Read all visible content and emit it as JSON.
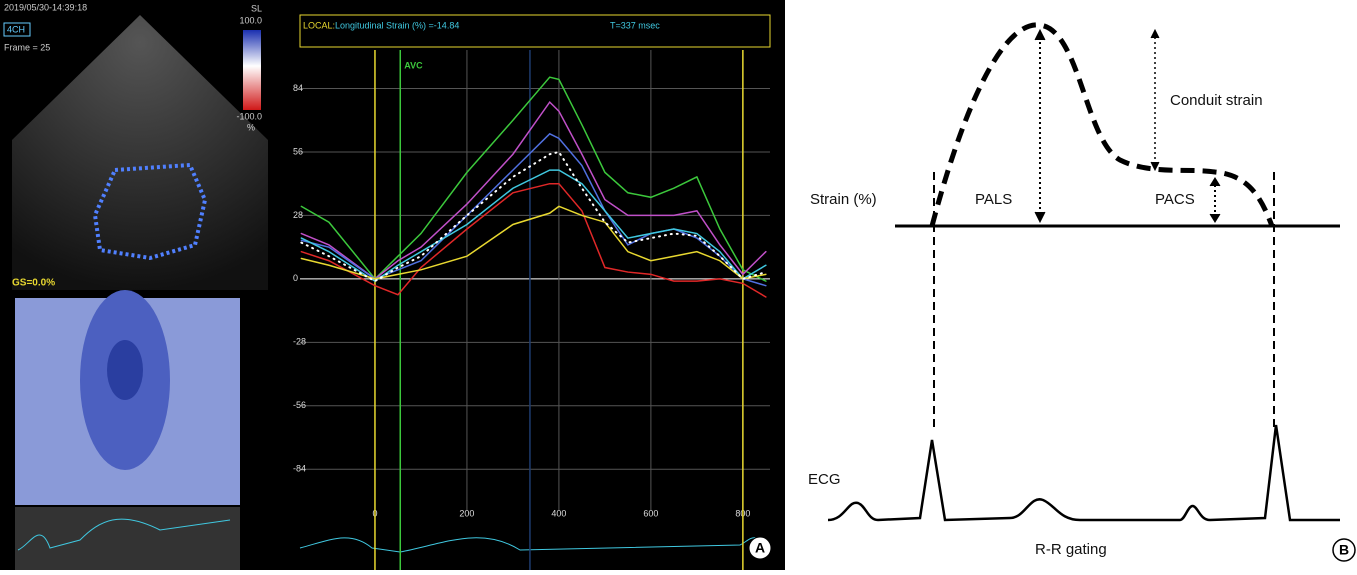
{
  "chart_data": {
    "type": "line",
    "xlim": [
      -163,
      859
    ],
    "ylim": [
      -102,
      101
    ],
    "xticks": [
      0,
      200,
      400,
      600,
      800
    ],
    "yticks": [
      84,
      56,
      28,
      0,
      -28,
      -56,
      -84
    ],
    "grid": true,
    "x": [
      -160,
      -100,
      0,
      50,
      100,
      200,
      300,
      380,
      400,
      450,
      500,
      550,
      600,
      650,
      700,
      750,
      800,
      850
    ],
    "series": [
      {
        "color": "#3cc83c",
        "values": [
          32,
          25,
          0,
          10,
          20,
          47,
          70,
          89,
          88,
          68,
          47,
          38,
          36,
          40,
          45,
          22,
          4,
          -1
        ]
      },
      {
        "color": "#c050c8",
        "values": [
          20,
          15,
          0,
          8,
          14,
          33,
          55,
          78,
          74,
          55,
          35,
          28,
          28,
          28,
          30,
          15,
          2,
          12
        ]
      },
      {
        "color": "#5070e0",
        "values": [
          17,
          14,
          0,
          4,
          8,
          28,
          48,
          64,
          62,
          50,
          30,
          15,
          20,
          22,
          18,
          10,
          0,
          -3
        ]
      },
      {
        "color": "#40c8e0",
        "values": [
          18,
          12,
          -1,
          6,
          12,
          24,
          40,
          48,
          48,
          42,
          30,
          18,
          20,
          22,
          20,
          12,
          0,
          6
        ]
      },
      {
        "color": "#e02828",
        "values": [
          12,
          8,
          -3,
          -7,
          5,
          22,
          38,
          42,
          42,
          30,
          5,
          3,
          2,
          -1,
          -1,
          0,
          -2,
          -8
        ]
      },
      {
        "color": "#e8d830",
        "values": [
          9,
          6,
          0,
          2,
          4,
          10,
          24,
          29,
          32,
          28,
          25,
          12,
          8,
          10,
          12,
          8,
          0,
          2
        ]
      },
      {
        "color": "#ffffff",
        "dotted": true,
        "values": [
          16,
          10,
          -1,
          5,
          10,
          28,
          45,
          55,
          56,
          40,
          25,
          16,
          18,
          20,
          19,
          10,
          0,
          3
        ]
      }
    ],
    "reference_lines": [
      {
        "x": 0,
        "color": "#e8d830"
      },
      {
        "x": 800,
        "color": "#e8d830"
      },
      {
        "x": 55,
        "color": "#3cc83c",
        "label": "AVC"
      },
      {
        "x": 337,
        "color": "#1e3c6e"
      }
    ],
    "header": {
      "mode": "LOCAL:",
      "readout": "Longitudinal Strain (%) =-14.84",
      "time": "T=337 msec"
    }
  },
  "panel_a": {
    "timestamp": "2019/05/30-14:39:18",
    "view": "4CH",
    "frame": "Frame = 25",
    "scale_name": "SL",
    "scale_max": "100.0",
    "scale_min": "-100.0",
    "scale_unit": "%",
    "global_strain": "GS=0.0%",
    "label": "A"
  },
  "panel_b": {
    "y_axis_label": "Strain (%)",
    "conduit": "Conduit strain",
    "pals": "PALS",
    "pacs": "PACS",
    "ecg": "ECG",
    "gating": "R-R gating",
    "label": "B"
  }
}
